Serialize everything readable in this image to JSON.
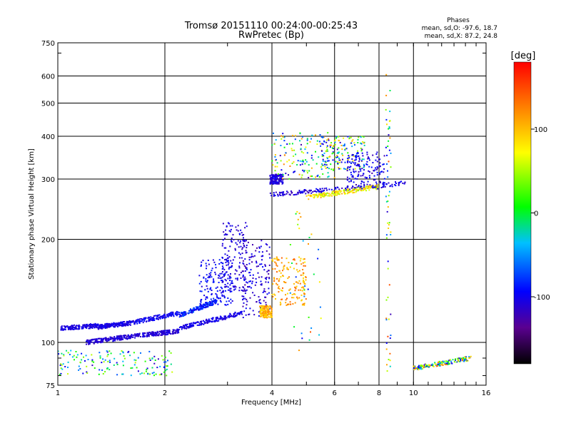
{
  "chart_data": {
    "type": "scatter",
    "title": "Tromsø 20151110 00:24:00-00:25:43",
    "subtitle": "RwPretec (Bp)",
    "xlabel": "Frequency [MHz]",
    "ylabel": "Stationary phase Virtual Height [km]",
    "x_scale": "log",
    "y_scale": "log",
    "xlim": [
      1,
      16
    ],
    "ylim": [
      75,
      750
    ],
    "x_ticks": [
      1,
      2,
      4,
      6,
      8,
      10,
      16
    ],
    "x_tick_labels": [
      "1",
      "2",
      "4",
      "6",
      "8",
      "10",
      "16"
    ],
    "y_ticks": [
      75,
      100,
      200,
      300,
      400,
      500,
      600,
      750
    ],
    "y_tick_labels": [
      "75",
      "100",
      "200",
      "300",
      "400",
      "500",
      "600",
      "750"
    ],
    "grid": true,
    "phase_box": {
      "title": "Phases",
      "line_o": "mean, sd,O: -97.6, 18.7",
      "line_x": "mean, sd,X:  87.2, 24.8"
    },
    "colorbar": {
      "label": "[deg]",
      "ticks": [
        100,
        0,
        -100
      ],
      "tick_labels": [
        "100",
        "0",
        "-100"
      ],
      "range": [
        -180,
        180
      ]
    },
    "series": [
      {
        "x": [
          1.02,
          1.3
        ],
        "y": [
          110,
          112
        ],
        "phase_range": [
          -115,
          -95
        ],
        "kind": "line"
      },
      {
        "x": [
          1.3,
          1.6
        ],
        "y": [
          111,
          114
        ],
        "phase_range": [
          -115,
          -95
        ],
        "kind": "line"
      },
      {
        "x": [
          1.6,
          2.2
        ],
        "y": [
          114,
          122
        ],
        "phase_range": [
          -115,
          -85
        ],
        "kind": "line"
      },
      {
        "x": [
          2.2,
          2.8
        ],
        "y": [
          120,
          132
        ],
        "phase_range": [
          -110,
          -60
        ],
        "kind": "line"
      },
      {
        "x": [
          1.2,
          1.6
        ],
        "y": [
          100,
          104
        ],
        "phase_range": [
          -120,
          -100
        ],
        "kind": "line"
      },
      {
        "x": [
          1.6,
          2.2
        ],
        "y": [
          104,
          108
        ],
        "phase_range": [
          -120,
          -100
        ],
        "kind": "line"
      },
      {
        "x": [
          2.2,
          3.3
        ],
        "y": [
          110,
          122
        ],
        "phase_range": [
          -115,
          -95
        ],
        "kind": "line"
      },
      {
        "x": [
          2.5,
          3.1
        ],
        "y": [
          128,
          175
        ],
        "phase_range": [
          -110,
          -80
        ],
        "kind": "cloud"
      },
      {
        "x": [
          2.9,
          3.4
        ],
        "y": [
          140,
          225
        ],
        "phase_range": [
          -120,
          -95
        ],
        "kind": "cloud"
      },
      {
        "x": [
          1.0,
          2.1
        ],
        "y": [
          80,
          95
        ],
        "phase_range": [
          -120,
          60
        ],
        "kind": "cloud"
      },
      {
        "x": [
          3.3,
          3.95
        ],
        "y": [
          118,
          200
        ],
        "phase_range": [
          -130,
          -90
        ],
        "kind": "cloud"
      },
      {
        "x": [
          3.7,
          4.0
        ],
        "y": [
          118,
          128
        ],
        "phase_range": [
          80,
          130
        ],
        "kind": "cloud"
      },
      {
        "x": [
          4.0,
          5.0
        ],
        "y": [
          128,
          178
        ],
        "phase_range": [
          85,
          140
        ],
        "kind": "cloud"
      },
      {
        "x": [
          3.95,
          9.6
        ],
        "y": [
          270,
          292
        ],
        "phase_range": [
          -125,
          -90
        ],
        "kind": "line"
      },
      {
        "x": [
          3.95,
          4.3
        ],
        "y": [
          290,
          310
        ],
        "phase_range": [
          -120,
          -95
        ],
        "kind": "cloud"
      },
      {
        "x": [
          5.0,
          8.0
        ],
        "y": [
          265,
          285
        ],
        "phase_range": [
          40,
          110
        ],
        "kind": "line"
      },
      {
        "x": [
          4.0,
          6.0
        ],
        "y": [
          300,
          410
        ],
        "phase_range": [
          -130,
          130
        ],
        "kind": "cloud"
      },
      {
        "x": [
          5.5,
          7.3
        ],
        "y": [
          320,
          400
        ],
        "phase_range": [
          -120,
          120
        ],
        "kind": "cloud"
      },
      {
        "x": [
          6.5,
          8.3
        ],
        "y": [
          280,
          360
        ],
        "phase_range": [
          -125,
          -85
        ],
        "kind": "cloud"
      },
      {
        "x": [
          10.0,
          14.5
        ],
        "y": [
          84,
          90
        ],
        "phase_range": [
          -125,
          140
        ],
        "kind": "line"
      },
      {
        "x": [
          8.35,
          8.65
        ],
        "y": [
          82,
          620
        ],
        "phase_range": [
          -125,
          150
        ],
        "kind": "column"
      },
      {
        "x": [
          4.5,
          5.5
        ],
        "y": [
          82,
          250
        ],
        "phase_range": [
          -100,
          150
        ],
        "kind": "sparse"
      }
    ]
  }
}
